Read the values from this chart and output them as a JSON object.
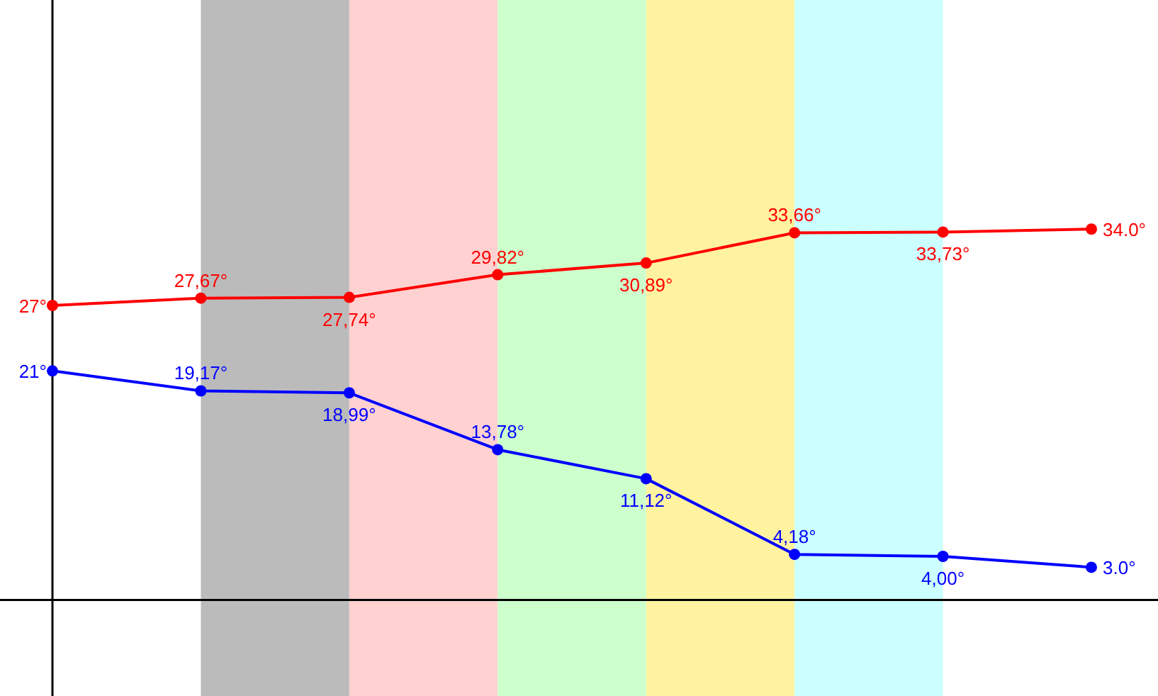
{
  "chart_data": {
    "type": "line",
    "categories": [
      null,
      null,
      null,
      null,
      null,
      null,
      null,
      null
    ],
    "ylim": [
      -8.8,
      55
    ],
    "marker": "circle",
    "line_style": "solid",
    "series": [
      {
        "color": "#ff0000",
        "values": [
          27,
          27.67,
          27.74,
          29.82,
          30.89,
          33.66,
          33.73,
          34.0
        ],
        "value_labels": [
          "27°",
          "27,67°",
          "27,74°",
          "29,82°",
          "30,89°",
          "33,66°",
          "33,73°",
          "34.0°"
        ]
      },
      {
        "color": "#0000ff",
        "values": [
          21,
          19.17,
          18.99,
          13.78,
          11.12,
          4.18,
          4.0,
          3.0
        ],
        "value_labels": [
          "21°",
          "19,17°",
          "18,99°",
          "13,78°",
          "11,12°",
          "4,18°",
          "4,00°",
          "3.0°"
        ]
      }
    ]
  }
}
